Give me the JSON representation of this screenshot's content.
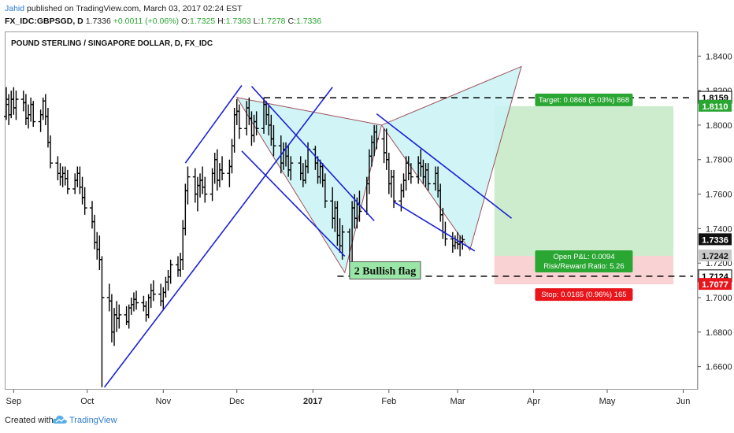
{
  "header": {
    "author": "Jahid",
    "published": " published on TradingView.com, March 03, 2017 02:24 EST",
    "symbol": "FX_IDC:GBPSGD, D",
    "last": "1.7336",
    "change": "+0.0011 (+0.06%)",
    "open_label": "O:",
    "open": "1.7325",
    "high_label": "H:",
    "high": "1.7363",
    "low_label": "L:",
    "low": "1.7278",
    "close_label": "C:",
    "close": "1.7336"
  },
  "chart_title": "POUND STERLING / SINGAPORE DOLLAR, D, FX_IDC",
  "annotation": "2 Bullish flag",
  "position": {
    "target_label": "Target: 0.0868 (5.03%) 868",
    "pnl_label": "Open P&L: 0.0094",
    "rr_label": "Risk/Reward Ratio: 5.26",
    "stop_label": "Stop: 0.0165 (0.96%) 165"
  },
  "footer": {
    "created": "Created with",
    "brand": "TradingView"
  },
  "colors": {
    "bars": "#000000",
    "trendlines": "#1a22d6",
    "pattern_fill": "#c9f3f6",
    "pattern_stroke": "#a0505a",
    "target_zone": "#cdeccd",
    "stop_zone": "#f9d3d3",
    "green_badge": "#2aa632",
    "red_badge": "#e8151b"
  },
  "chart_data": {
    "type": "ohlc",
    "title": "POUND STERLING / SINGAPORE DOLLAR, D, FX_IDC",
    "y_ticks": [
      "1.6600",
      "1.6800",
      "1.7000",
      "1.7200",
      "1.7400",
      "1.7600",
      "1.7800",
      "1.8000",
      "1.8200",
      "1.8400"
    ],
    "y_range": [
      1.6475,
      1.852
    ],
    "x_ticks": [
      "Sep",
      "Oct",
      "Nov",
      "Dec",
      "2017",
      "Feb",
      "Mar",
      "Apr",
      "May",
      "Jun"
    ],
    "x_tick_dates": [
      "2016-09-01",
      "2016-10-01",
      "2016-11-01",
      "2016-12-01",
      "2017-01-01",
      "2017-02-01",
      "2017-03-01",
      "2017-04-01",
      "2017-05-01",
      "2017-06-01"
    ],
    "x_range": [
      "2016-08-29",
      "2017-06-05"
    ],
    "price_labels": [
      {
        "text": "1.8159",
        "value": 1.8159,
        "style": "outline"
      },
      {
        "text": "1.8110",
        "value": 1.811,
        "style": "green"
      },
      {
        "text": "1.7336",
        "value": 1.7336,
        "style": "black"
      },
      {
        "text": "1.7242",
        "value": 1.7242,
        "style": "gray"
      },
      {
        "text": "1.7124",
        "value": 1.7124,
        "style": "outline"
      },
      {
        "text": "1.7077",
        "value": 1.7077,
        "style": "red"
      }
    ],
    "ohlc": [
      [
        "2016-08-29",
        1.805,
        1.822,
        1.803,
        1.815
      ],
      [
        "2016-08-30",
        1.812,
        1.818,
        1.8,
        1.806
      ],
      [
        "2016-08-31",
        1.806,
        1.82,
        1.804,
        1.815
      ],
      [
        "2016-09-01",
        1.815,
        1.822,
        1.806,
        1.81
      ],
      [
        "2016-09-02",
        1.81,
        1.82,
        1.803,
        1.815
      ],
      [
        "2016-09-05",
        1.815,
        1.82,
        1.808,
        1.813
      ],
      [
        "2016-09-06",
        1.813,
        1.818,
        1.8,
        1.804
      ],
      [
        "2016-09-07",
        1.804,
        1.812,
        1.798,
        1.806
      ],
      [
        "2016-09-08",
        1.806,
        1.816,
        1.802,
        1.812
      ],
      [
        "2016-09-09",
        1.812,
        1.814,
        1.799,
        1.802
      ],
      [
        "2016-09-12",
        1.802,
        1.809,
        1.796,
        1.806
      ],
      [
        "2016-09-13",
        1.806,
        1.816,
        1.803,
        1.814
      ],
      [
        "2016-09-14",
        1.814,
        1.818,
        1.8,
        1.805
      ],
      [
        "2016-09-15",
        1.805,
        1.81,
        1.787,
        1.79
      ],
      [
        "2016-09-16",
        1.79,
        1.794,
        1.775,
        1.778
      ],
      [
        "2016-09-19",
        1.778,
        1.782,
        1.768,
        1.772
      ],
      [
        "2016-09-20",
        1.772,
        1.778,
        1.765,
        1.77
      ],
      [
        "2016-09-21",
        1.77,
        1.776,
        1.764,
        1.772
      ],
      [
        "2016-09-22",
        1.772,
        1.776,
        1.765,
        1.769
      ],
      [
        "2016-09-23",
        1.769,
        1.774,
        1.76,
        1.763
      ],
      [
        "2016-09-26",
        1.763,
        1.772,
        1.76,
        1.768
      ],
      [
        "2016-09-27",
        1.768,
        1.776,
        1.764,
        1.772
      ],
      [
        "2016-09-28",
        1.772,
        1.776,
        1.76,
        1.764
      ],
      [
        "2016-09-29",
        1.764,
        1.77,
        1.754,
        1.758
      ],
      [
        "2016-09-30",
        1.758,
        1.764,
        1.748,
        1.752
      ],
      [
        "2016-10-03",
        1.752,
        1.756,
        1.74,
        1.744
      ],
      [
        "2016-10-04",
        1.744,
        1.748,
        1.728,
        1.732
      ],
      [
        "2016-10-05",
        1.732,
        1.738,
        1.722,
        1.728
      ],
      [
        "2016-10-06",
        1.728,
        1.736,
        1.716,
        1.722
      ],
      [
        "2016-10-07",
        1.722,
        1.724,
        1.648,
        1.7
      ],
      [
        "2016-10-10",
        1.7,
        1.708,
        1.692,
        1.698
      ],
      [
        "2016-10-11",
        1.698,
        1.702,
        1.674,
        1.68
      ],
      [
        "2016-10-12",
        1.68,
        1.694,
        1.672,
        1.69
      ],
      [
        "2016-10-13",
        1.69,
        1.698,
        1.68,
        1.688
      ],
      [
        "2016-10-14",
        1.688,
        1.696,
        1.682,
        1.69
      ],
      [
        "2016-10-17",
        1.69,
        1.695,
        1.684,
        1.686
      ],
      [
        "2016-10-18",
        1.686,
        1.696,
        1.682,
        1.694
      ],
      [
        "2016-10-19",
        1.694,
        1.7,
        1.69,
        1.696
      ],
      [
        "2016-10-20",
        1.696,
        1.703,
        1.692,
        1.699
      ],
      [
        "2016-10-21",
        1.699,
        1.704,
        1.693,
        1.697
      ],
      [
        "2016-10-24",
        1.697,
        1.701,
        1.692,
        1.695
      ],
      [
        "2016-10-25",
        1.695,
        1.698,
        1.686,
        1.69
      ],
      [
        "2016-10-26",
        1.69,
        1.702,
        1.688,
        1.7
      ],
      [
        "2016-10-27",
        1.7,
        1.708,
        1.694,
        1.704
      ],
      [
        "2016-10-28",
        1.704,
        1.71,
        1.698,
        1.702
      ],
      [
        "2016-10-31",
        1.702,
        1.708,
        1.695,
        1.698
      ],
      [
        "2016-11-01",
        1.698,
        1.706,
        1.693,
        1.703
      ],
      [
        "2016-11-02",
        1.703,
        1.712,
        1.7,
        1.709
      ],
      [
        "2016-11-03",
        1.709,
        1.716,
        1.704,
        1.712
      ],
      [
        "2016-11-04",
        1.712,
        1.722,
        1.708,
        1.719
      ],
      [
        "2016-11-07",
        1.719,
        1.724,
        1.712,
        1.716
      ],
      [
        "2016-11-08",
        1.716,
        1.726,
        1.712,
        1.722
      ],
      [
        "2016-11-09",
        1.722,
        1.745,
        1.716,
        1.74
      ],
      [
        "2016-11-10",
        1.74,
        1.766,
        1.736,
        1.762
      ],
      [
        "2016-11-11",
        1.762,
        1.776,
        1.754,
        1.77
      ],
      [
        "2016-11-14",
        1.77,
        1.775,
        1.755,
        1.76
      ],
      [
        "2016-11-15",
        1.76,
        1.77,
        1.75,
        1.765
      ],
      [
        "2016-11-16",
        1.765,
        1.772,
        1.758,
        1.768
      ],
      [
        "2016-11-17",
        1.768,
        1.776,
        1.76,
        1.764
      ],
      [
        "2016-11-18",
        1.764,
        1.77,
        1.755,
        1.76
      ],
      [
        "2016-11-21",
        1.76,
        1.775,
        1.756,
        1.772
      ],
      [
        "2016-11-22",
        1.772,
        1.784,
        1.766,
        1.78
      ],
      [
        "2016-11-23",
        1.78,
        1.786,
        1.762,
        1.768
      ],
      [
        "2016-11-24",
        1.768,
        1.778,
        1.764,
        1.774
      ],
      [
        "2016-11-25",
        1.774,
        1.782,
        1.768,
        1.772
      ],
      [
        "2016-11-28",
        1.772,
        1.78,
        1.764,
        1.776
      ],
      [
        "2016-11-29",
        1.776,
        1.792,
        1.772,
        1.788
      ],
      [
        "2016-11-30",
        1.788,
        1.81,
        1.784,
        1.806
      ],
      [
        "2016-12-01",
        1.806,
        1.815,
        1.8,
        1.808
      ],
      [
        "2016-12-02",
        1.808,
        1.812,
        1.792,
        1.798
      ],
      [
        "2016-12-05",
        1.798,
        1.814,
        1.794,
        1.81
      ],
      [
        "2016-12-06",
        1.81,
        1.816,
        1.8,
        1.804
      ],
      [
        "2016-12-07",
        1.804,
        1.808,
        1.788,
        1.794
      ],
      [
        "2016-12-08",
        1.794,
        1.806,
        1.79,
        1.802
      ],
      [
        "2016-12-09",
        1.802,
        1.808,
        1.794,
        1.798
      ],
      [
        "2016-12-12",
        1.798,
        1.816,
        1.795,
        1.812
      ],
      [
        "2016-12-13",
        1.812,
        1.814,
        1.8,
        1.806
      ],
      [
        "2016-12-14",
        1.806,
        1.812,
        1.794,
        1.8
      ],
      [
        "2016-12-15",
        1.8,
        1.806,
        1.788,
        1.792
      ],
      [
        "2016-12-16",
        1.792,
        1.8,
        1.782,
        1.788
      ],
      [
        "2016-12-19",
        1.788,
        1.794,
        1.772,
        1.778
      ],
      [
        "2016-12-20",
        1.778,
        1.79,
        1.774,
        1.786
      ],
      [
        "2016-12-21",
        1.786,
        1.79,
        1.776,
        1.782
      ],
      [
        "2016-12-22",
        1.782,
        1.788,
        1.77,
        1.774
      ],
      [
        "2016-12-23",
        1.774,
        1.782,
        1.768,
        1.778
      ],
      [
        "2016-12-27",
        1.778,
        1.782,
        1.768,
        1.772
      ],
      [
        "2016-12-28",
        1.772,
        1.778,
        1.764,
        1.768
      ],
      [
        "2016-12-29",
        1.768,
        1.78,
        1.766,
        1.776
      ],
      [
        "2016-12-30",
        1.776,
        1.79,
        1.772,
        1.786
      ],
      [
        "2017-01-02",
        1.786,
        1.788,
        1.774,
        1.778
      ],
      [
        "2017-01-03",
        1.778,
        1.782,
        1.766,
        1.77
      ],
      [
        "2017-01-04",
        1.77,
        1.78,
        1.766,
        1.776
      ],
      [
        "2017-01-05",
        1.776,
        1.778,
        1.764,
        1.768
      ],
      [
        "2017-01-06",
        1.768,
        1.772,
        1.752,
        1.756
      ],
      [
        "2017-01-09",
        1.756,
        1.764,
        1.74,
        1.746
      ],
      [
        "2017-01-10",
        1.746,
        1.756,
        1.738,
        1.752
      ],
      [
        "2017-01-11",
        1.752,
        1.756,
        1.73,
        1.736
      ],
      [
        "2017-01-12",
        1.736,
        1.746,
        1.726,
        1.73
      ],
      [
        "2017-01-13",
        1.73,
        1.742,
        1.722,
        1.738
      ],
      [
        "2017-01-16",
        1.738,
        1.74,
        1.712,
        1.718
      ],
      [
        "2017-01-17",
        1.718,
        1.756,
        1.716,
        1.752
      ],
      [
        "2017-01-18",
        1.752,
        1.76,
        1.74,
        1.746
      ],
      [
        "2017-01-19",
        1.746,
        1.758,
        1.74,
        1.754
      ],
      [
        "2017-01-20",
        1.754,
        1.762,
        1.744,
        1.75
      ],
      [
        "2017-01-23",
        1.75,
        1.77,
        1.748,
        1.766
      ],
      [
        "2017-01-24",
        1.766,
        1.786,
        1.76,
        1.782
      ],
      [
        "2017-01-25",
        1.782,
        1.794,
        1.776,
        1.79
      ],
      [
        "2017-01-26",
        1.79,
        1.8,
        1.782,
        1.796
      ],
      [
        "2017-01-27",
        1.796,
        1.8,
        1.786,
        1.792
      ],
      [
        "2017-01-30",
        1.792,
        1.798,
        1.778,
        1.784
      ],
      [
        "2017-01-31",
        1.784,
        1.798,
        1.774,
        1.78
      ],
      [
        "2017-02-01",
        1.78,
        1.784,
        1.76,
        1.766
      ],
      [
        "2017-02-02",
        1.766,
        1.774,
        1.758,
        1.77
      ],
      [
        "2017-02-03",
        1.77,
        1.774,
        1.752,
        1.756
      ],
      [
        "2017-02-06",
        1.756,
        1.766,
        1.75,
        1.762
      ],
      [
        "2017-02-07",
        1.762,
        1.772,
        1.758,
        1.768
      ],
      [
        "2017-02-08",
        1.768,
        1.782,
        1.762,
        1.778
      ],
      [
        "2017-02-09",
        1.778,
        1.782,
        1.768,
        1.772
      ],
      [
        "2017-02-10",
        1.772,
        1.778,
        1.766,
        1.77
      ],
      [
        "2017-02-13",
        1.77,
        1.782,
        1.766,
        1.778
      ],
      [
        "2017-02-14",
        1.778,
        1.786,
        1.77,
        1.776
      ],
      [
        "2017-02-15",
        1.776,
        1.78,
        1.766,
        1.77
      ],
      [
        "2017-02-16",
        1.77,
        1.778,
        1.764,
        1.774
      ],
      [
        "2017-02-17",
        1.774,
        1.778,
        1.762,
        1.766
      ],
      [
        "2017-02-20",
        1.766,
        1.776,
        1.762,
        1.772
      ],
      [
        "2017-02-21",
        1.772,
        1.776,
        1.758,
        1.762
      ],
      [
        "2017-02-22",
        1.762,
        1.766,
        1.744,
        1.748
      ],
      [
        "2017-02-23",
        1.748,
        1.752,
        1.734,
        1.738
      ],
      [
        "2017-02-24",
        1.738,
        1.744,
        1.73,
        1.734
      ],
      [
        "2017-02-27",
        1.734,
        1.738,
        1.726,
        1.73
      ],
      [
        "2017-02-28",
        1.73,
        1.736,
        1.728,
        1.732
      ],
      [
        "2017-03-01",
        1.732,
        1.738,
        1.728,
        1.731
      ],
      [
        "2017-03-02",
        1.731,
        1.736,
        1.724,
        1.7325
      ],
      [
        "2017-03-03",
        1.7325,
        1.7363,
        1.7278,
        1.7336
      ]
    ],
    "drawings": {
      "uptrend_lines": [
        [
          [
            "2016-10-08",
            1.648
          ],
          [
            "2017-01-09",
            1.822
          ]
        ],
        [
          [
            "2016-11-10",
            1.778
          ],
          [
            "2016-12-03",
            1.823
          ]
        ]
      ],
      "flag_channel_1": [
        [
          [
            "2016-12-07",
            1.8225
          ],
          [
            "2017-01-26",
            1.7445
          ]
        ],
        [
          [
            "2016-12-03",
            1.785
          ],
          [
            "2017-01-14",
            1.724
          ]
        ]
      ],
      "flag_channel_2": [
        [
          [
            "2017-01-27",
            1.8065
          ],
          [
            "2017-03-23",
            1.746
          ]
        ],
        [
          [
            "2017-02-03",
            1.7555
          ],
          [
            "2017-03-08",
            1.727
          ]
        ]
      ],
      "pattern_triangles": [
        [
          [
            "2016-12-01",
            1.816
          ],
          [
            "2017-01-14",
            1.7145
          ],
          [
            "2017-01-29",
            1.8
          ]
        ],
        [
          [
            "2017-01-29",
            1.8
          ],
          [
            "2017-03-06",
            1.7275
          ],
          [
            "2017-03-27",
            1.834
          ]
        ]
      ],
      "dashed_levels": [
        {
          "value": 1.8159,
          "from": "2016-12-12",
          "to": "2017-06-05"
        },
        {
          "value": 1.7124,
          "from": "2017-01-11",
          "to": "2017-06-05"
        }
      ],
      "long_position": {
        "from": "2017-03-16",
        "to": "2017-05-28",
        "entry": 1.7242,
        "target": 1.811,
        "stop": 1.7077
      }
    }
  }
}
